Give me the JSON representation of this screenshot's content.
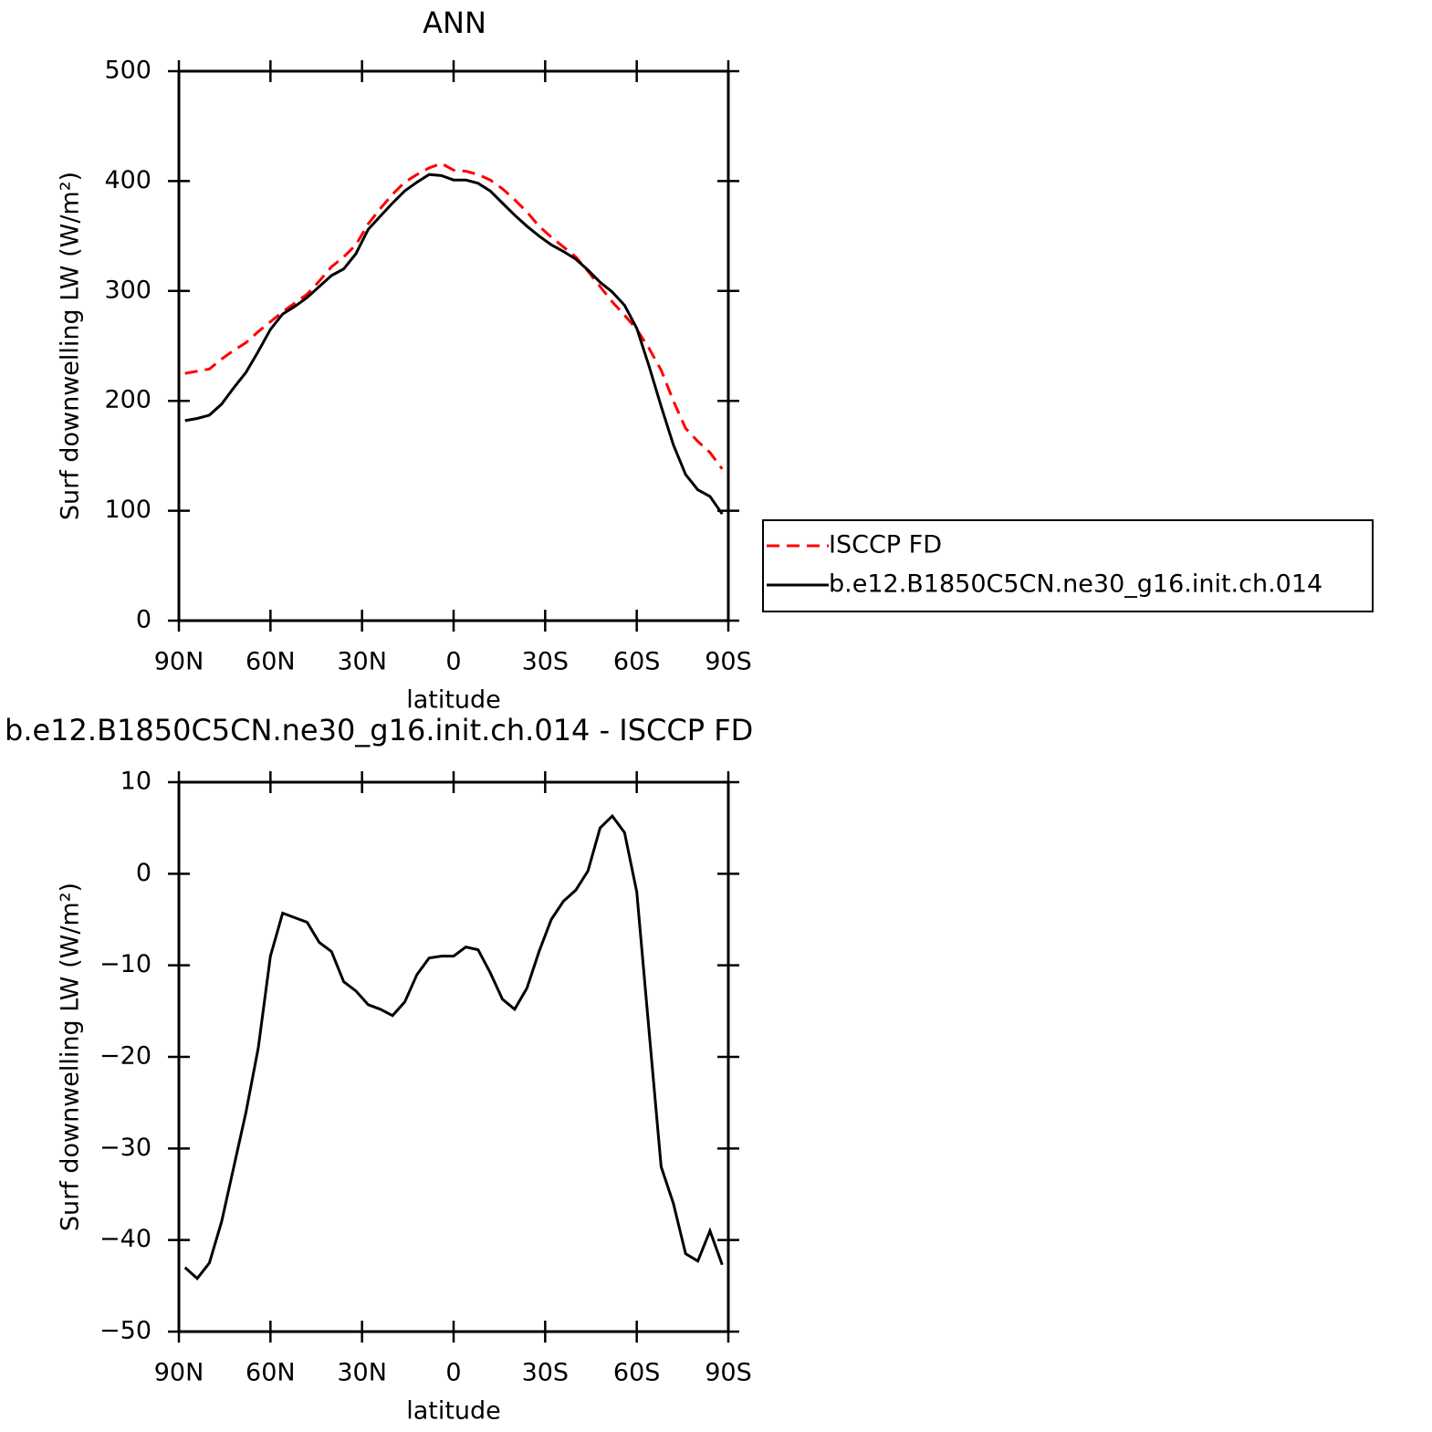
{
  "chart_data": [
    {
      "type": "line",
      "title": "ANN",
      "xlabel": "latitude",
      "ylabel": "Surf downwelling LW (W/m²)",
      "x": [
        88,
        84,
        80,
        76,
        72,
        68,
        64,
        60,
        56,
        52,
        48,
        44,
        40,
        36,
        32,
        28,
        24,
        20,
        16,
        12,
        8,
        4,
        0,
        -4,
        -8,
        -12,
        -16,
        -20,
        -24,
        -28,
        -32,
        -36,
        -40,
        -44,
        -48,
        -52,
        -56,
        -60,
        -64,
        -68,
        -72,
        -76,
        -80,
        -84,
        -88
      ],
      "series": [
        {
          "name": "ISCCP FD",
          "color": "#ff0000",
          "dashed": true,
          "values": [
            225,
            227,
            229,
            238,
            246,
            253,
            263,
            272,
            281,
            289,
            297,
            309,
            322,
            331,
            342,
            361,
            375,
            388,
            399,
            406,
            412,
            416,
            410,
            409,
            406,
            401,
            393,
            383,
            372,
            359,
            349,
            340,
            331,
            318,
            304,
            290,
            278,
            265,
            248,
            228,
            200,
            175,
            163,
            153,
            138
          ]
        },
        {
          "name": "b.e12.B1850C5CN.ne30_g16.init.ch.014",
          "color": "#000000",
          "dashed": false,
          "values": [
            182,
            184,
            187,
            197,
            212,
            226,
            245,
            265,
            279,
            286,
            294,
            304,
            314,
            320,
            334,
            356,
            368,
            380,
            391,
            399,
            406,
            405,
            401,
            401,
            398,
            391,
            380,
            369,
            359,
            350,
            342,
            336,
            329,
            319,
            308,
            299,
            287,
            266,
            232,
            195,
            160,
            133,
            119,
            113,
            97
          ]
        }
      ],
      "xlim": [
        90,
        -90
      ],
      "xticks": [
        {
          "value": 90,
          "label": "90N"
        },
        {
          "value": 60,
          "label": "60N"
        },
        {
          "value": 30,
          "label": "30N"
        },
        0,
        {
          "value": -30,
          "label": "30S"
        },
        {
          "value": -60,
          "label": "60S"
        },
        {
          "value": -90,
          "label": "90S"
        }
      ],
      "ylim": [
        0,
        500
      ],
      "yticks": [
        0,
        100,
        200,
        300,
        400,
        500
      ],
      "legend": "outside-right"
    },
    {
      "type": "line",
      "title": "b.e12.B1850C5CN.ne30_g16.init.ch.014 - ISCCP FD",
      "xlabel": "latitude",
      "ylabel": "Surf downwelling LW (W/m²)",
      "x": [
        88,
        84,
        80,
        76,
        72,
        68,
        64,
        60,
        56,
        52,
        48,
        44,
        40,
        36,
        32,
        28,
        24,
        20,
        16,
        12,
        8,
        4,
        0,
        -4,
        -8,
        -12,
        -16,
        -20,
        -24,
        -28,
        -32,
        -36,
        -40,
        -44,
        -48,
        -52,
        -56,
        -60,
        -64,
        -68,
        -72,
        -76,
        -80,
        -84,
        -88
      ],
      "series": [
        {
          "color": "#000000",
          "dashed": false,
          "values": [
            -43,
            -44.2,
            -42.5,
            -38,
            -32,
            -26,
            -19,
            -9,
            -4.3,
            -4.8,
            -5.3,
            -7.5,
            -8.5,
            -11.8,
            -12.8,
            -14.3,
            -14.8,
            -15.5,
            -14,
            -11,
            -9.2,
            -9,
            -9,
            -8,
            -8.3,
            -10.8,
            -13.7,
            -14.8,
            -12.5,
            -8.5,
            -5,
            -3,
            -1.8,
            0.3,
            5,
            6.3,
            4.5,
            -2,
            -17,
            -32,
            -36,
            -41.5,
            -42.3,
            -39,
            -42.7
          ]
        }
      ],
      "xlim": [
        90,
        -90
      ],
      "xticks": [
        {
          "value": 90,
          "label": "90N"
        },
        {
          "value": 60,
          "label": "60N"
        },
        {
          "value": 30,
          "label": "30N"
        },
        0,
        {
          "value": -30,
          "label": "30S"
        },
        {
          "value": -60,
          "label": "60S"
        },
        {
          "value": -90,
          "label": "90S"
        }
      ],
      "ylim": [
        -50,
        10
      ],
      "yticks": [
        {
          "value": -50,
          "label": "−50"
        },
        {
          "value": -40,
          "label": "−40"
        },
        {
          "value": -30,
          "label": "−30"
        },
        {
          "value": -20,
          "label": "−20"
        },
        {
          "value": -10,
          "label": "−10"
        },
        0,
        10
      ]
    }
  ]
}
